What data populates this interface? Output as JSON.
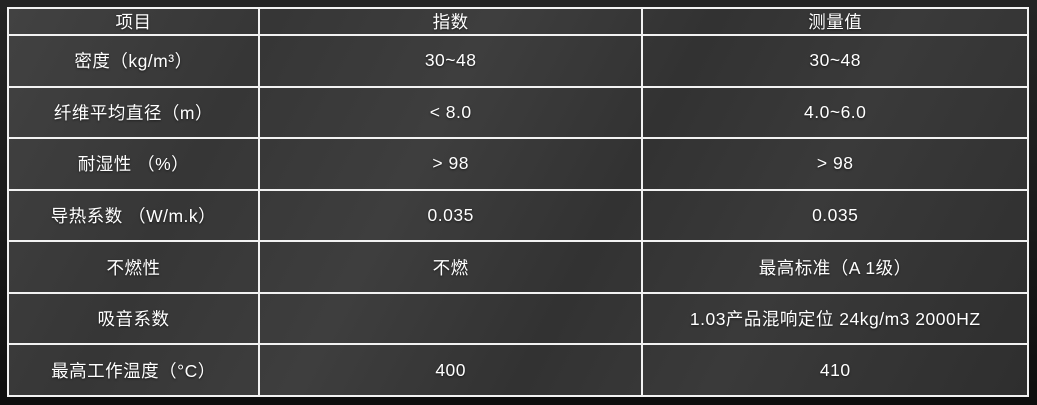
{
  "table": {
    "columns": [
      {
        "key": "item",
        "label": "项目"
      },
      {
        "key": "index",
        "label": "指数"
      },
      {
        "key": "measured",
        "label": "测量值"
      }
    ],
    "rows": [
      {
        "item": "密度（kg/m³）",
        "index": "30~48",
        "measured": "30~48"
      },
      {
        "item": "纤维平均直径（m）",
        "index": "< 8.0",
        "measured": "4.0~6.0"
      },
      {
        "item": "耐湿性 （%）",
        "index": "> 98",
        "measured": "> 98"
      },
      {
        "item": "导热系数 （W/m.k）",
        "index": "0.035",
        "measured": "0.035"
      },
      {
        "item": "不燃性",
        "index": "不燃",
        "measured": "最高标准（A 1级）"
      },
      {
        "item": "吸音系数",
        "index": "",
        "measured": "1.03产品混响定位 24kg/m3 2000HZ"
      },
      {
        "item": "最高工作温度（°C）",
        "index": "400",
        "measured": "410"
      }
    ],
    "colors": {
      "cell_background_light": "#424242",
      "cell_background_dark": "#2e2e2e",
      "grid_border": "#f2f2f2",
      "outer_margin": "#1a1a1a",
      "text": "#ffffff"
    }
  }
}
